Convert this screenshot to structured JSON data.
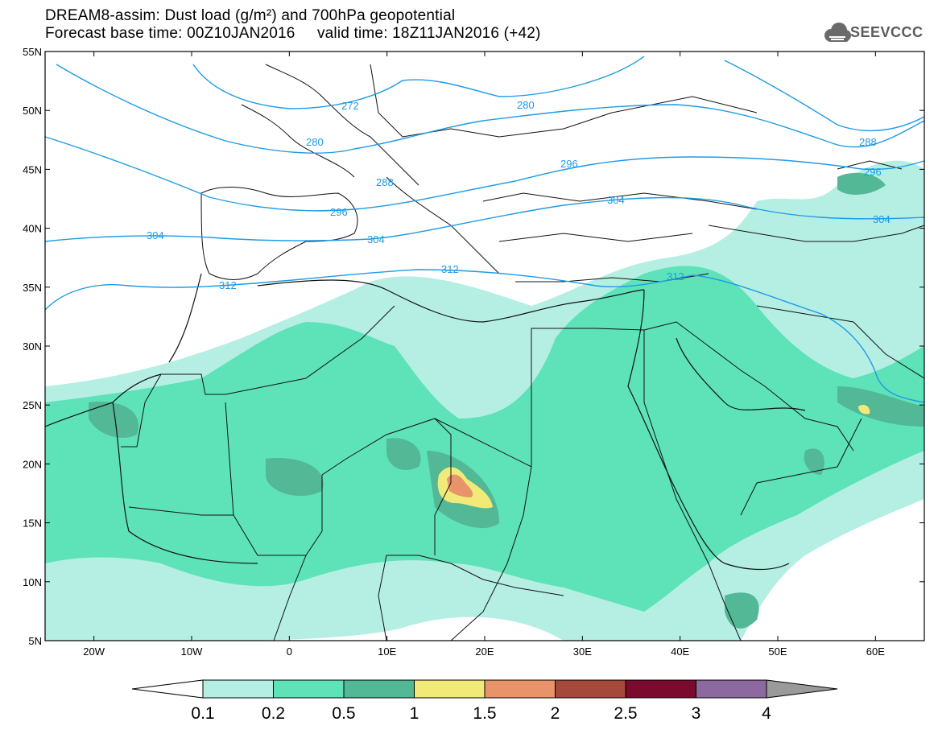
{
  "header": {
    "title_line1": "DREAM8-assim: Dust load (g/m²) and 700hPa geopotential",
    "title_line2": "Forecast base time: 00Z10JAN2016     valid time: 18Z11JAN2016 (+42)",
    "logo_text": "SEEVCCC"
  },
  "axes": {
    "lat_labels": [
      "55N",
      "50N",
      "45N",
      "40N",
      "35N",
      "30N",
      "25N",
      "20N",
      "15N",
      "10N",
      "5N"
    ],
    "lon_labels": [
      "20W",
      "10W",
      "0",
      "10E",
      "20E",
      "30E",
      "40E",
      "50E",
      "60E"
    ]
  },
  "contour_labels": [
    "272",
    "280",
    "280",
    "288",
    "288",
    "296",
    "296",
    "296",
    "304",
    "304",
    "304",
    "304",
    "312",
    "312",
    "312"
  ],
  "colorbar": {
    "labels": [
      "0.1",
      "0.2",
      "0.5",
      "1",
      "1.5",
      "2",
      "2.5",
      "3",
      "4"
    ],
    "colors": [
      "#b5efe4",
      "#5ee2b8",
      "#52b896",
      "#f2ea78",
      "#e8936a",
      "#a5493a",
      "#7a0a2e",
      "#8c6aa0",
      "#9a9a9a"
    ]
  },
  "colors": {
    "contour": "#1e9be6",
    "border": "#111111"
  }
}
